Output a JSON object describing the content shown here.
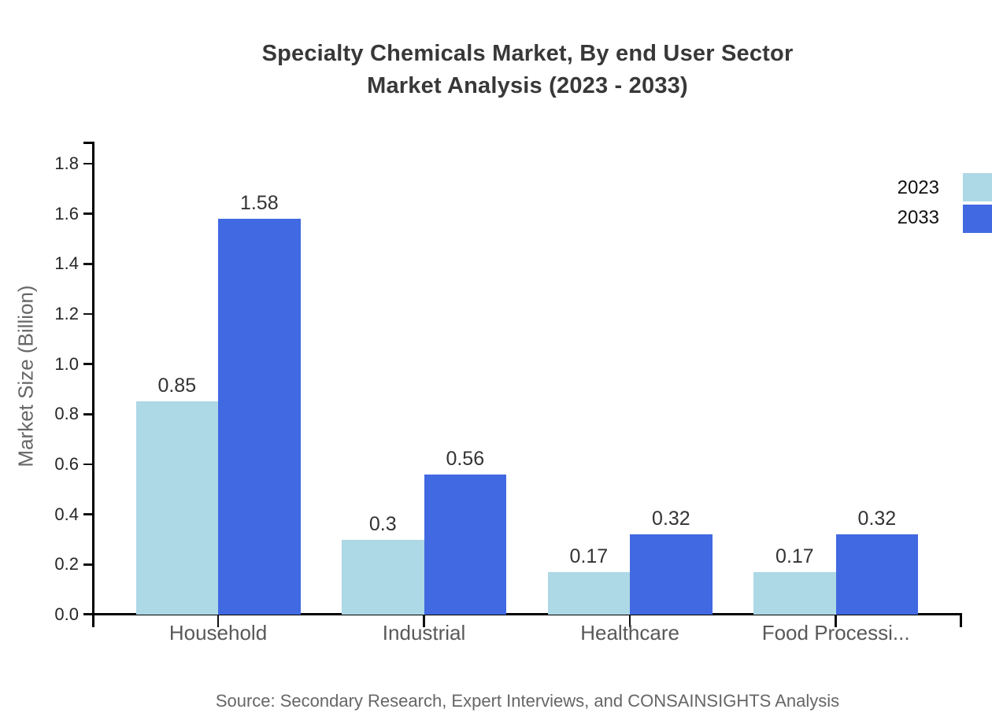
{
  "title": {
    "line1": "Specialty Chemicals Market, By end User Sector",
    "line2": "Market Analysis (2023 - 2033)"
  },
  "source_note": "Source: Secondary Research, Expert Interviews, and CONSAINSIGHTS Analysis",
  "colors": {
    "series_2023": "#ADD8E6",
    "series_2033": "#4169E1",
    "axis": "#000000",
    "title_text": "#383838",
    "muted_text": "#666666",
    "value_label_text": "#333333"
  },
  "chart_data": {
    "type": "bar",
    "title": "Specialty Chemicals Market, By end User Sector Market Analysis (2023 - 2033)",
    "categories": [
      "Household",
      "Industrial",
      "Healthcare",
      "Food Processi..."
    ],
    "series": [
      {
        "name": "2023",
        "color": "#ADD8E6",
        "values": [
          0.85,
          0.3,
          0.17,
          0.17
        ]
      },
      {
        "name": "2033",
        "color": "#4169E1",
        "values": [
          1.58,
          0.56,
          0.32,
          0.32
        ]
      }
    ],
    "value_labels": [
      [
        "0.85",
        "0.3",
        "0.17",
        "0.17"
      ],
      [
        "1.58",
        "0.56",
        "0.32",
        "0.32"
      ]
    ],
    "xlabel": "",
    "ylabel": "Market Size (Billion)",
    "ylim": [
      0,
      1.9
    ],
    "ytick_labels": [
      "0.0",
      "0.2",
      "0.4",
      "0.6",
      "0.8",
      "1.0",
      "1.2",
      "1.4",
      "1.6",
      "1.8"
    ],
    "grid": false,
    "legend_position": "right",
    "bar_value_labels_shown": true
  }
}
